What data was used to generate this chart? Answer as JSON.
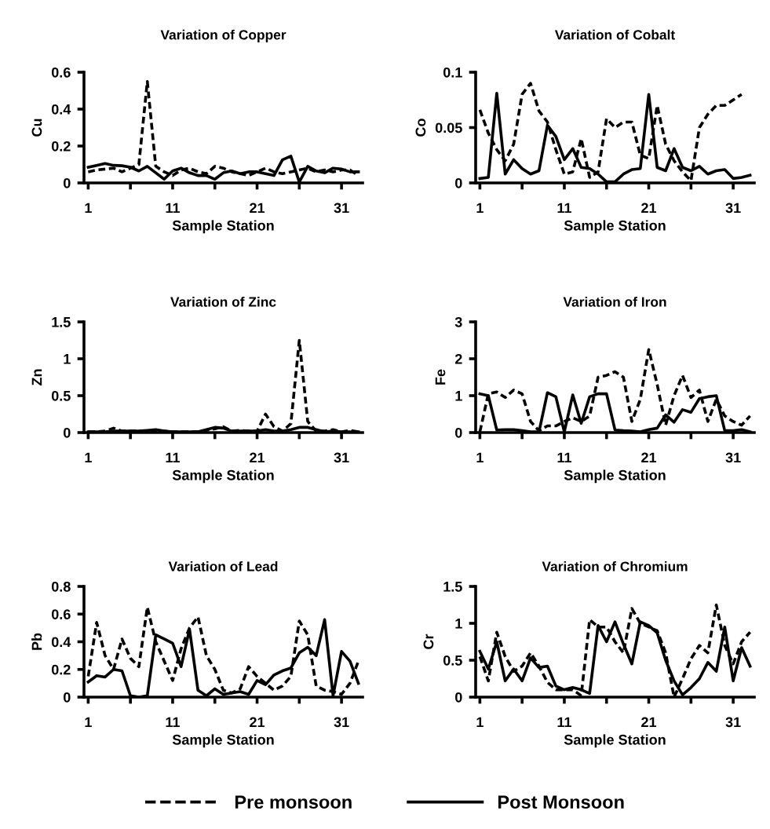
{
  "chart_data": [
    {
      "type": "line",
      "title": "Variation of Copper",
      "xlabel": "Sample Station",
      "ylabel": "Cu",
      "x": [
        1,
        2,
        3,
        4,
        5,
        6,
        7,
        8,
        9,
        10,
        11,
        12,
        13,
        14,
        15,
        16,
        17,
        18,
        19,
        20,
        21,
        22,
        23,
        24,
        25,
        26,
        27,
        28,
        29,
        30,
        31,
        32,
        33
      ],
      "xlim": [
        0.5,
        33.5
      ],
      "xticks": [
        1,
        {
          "value": 6,
          "label": null
        },
        11,
        {
          "value": 16,
          "label": null
        },
        21,
        {
          "value": 26,
          "label": null
        },
        31
      ],
      "ylim": [
        0,
        0.6
      ],
      "yticks": [
        0,
        0.2,
        0.4,
        0.6
      ],
      "grid": false,
      "marker": "none",
      "legend": "bottom",
      "series": [
        {
          "name": "Pre monsoon",
          "color": "#000000",
          "line_style": "dashed",
          "values": [
            0.06,
            0.07,
            0.075,
            0.08,
            0.06,
            0.08,
            0.1,
            0.55,
            0.09,
            0.06,
            0.04,
            0.07,
            0.08,
            0.06,
            0.05,
            0.09,
            0.08,
            0.06,
            0.05,
            0.04,
            0.06,
            0.08,
            0.06,
            0.05,
            0.06,
            0.07,
            0.08,
            0.06,
            0.07,
            0.06,
            0.07,
            0.07,
            0.04
          ]
        },
        {
          "name": "Post Monsoon",
          "color": "#000000",
          "line_style": "solid",
          "values": [
            0.085,
            0.095,
            0.105,
            0.095,
            0.093,
            0.085,
            0.065,
            0.09,
            0.055,
            0.02,
            0.065,
            0.08,
            0.055,
            0.04,
            0.04,
            0.02,
            0.055,
            0.065,
            0.05,
            0.06,
            0.06,
            0.05,
            0.04,
            0.125,
            0.145,
            0.005,
            0.09,
            0.065,
            0.055,
            0.08,
            0.075,
            0.06,
            0.06
          ]
        }
      ]
    },
    {
      "type": "line",
      "title": "Variation of Cobalt",
      "xlabel": "Sample Station",
      "ylabel": "Co",
      "x": [
        1,
        2,
        3,
        4,
        5,
        6,
        7,
        8,
        9,
        10,
        11,
        12,
        13,
        14,
        15,
        16,
        17,
        18,
        19,
        20,
        21,
        22,
        23,
        24,
        25,
        26,
        27,
        28,
        29,
        30,
        31,
        32,
        33
      ],
      "xlim": [
        0.5,
        33.5
      ],
      "xticks": [
        1,
        {
          "value": 6,
          "label": null
        },
        11,
        {
          "value": 16,
          "label": null
        },
        21,
        {
          "value": 26,
          "label": null
        },
        31
      ],
      "ylim": [
        0,
        0.1
      ],
      "yticks": [
        0,
        0.05,
        0.1
      ],
      "grid": false,
      "marker": "none",
      "series": [
        {
          "color": "#000000",
          "line_style": "dashed",
          "values": [
            0.066,
            0.045,
            0.03,
            0.02,
            0.035,
            0.08,
            0.09,
            0.065,
            0.055,
            0.03,
            0.008,
            0.01,
            0.04,
            0.005,
            0.01,
            0.058,
            0.05,
            0.055,
            0.055,
            0.025,
            0.022,
            0.07,
            0.035,
            0.02,
            0.01,
            0.002,
            0.05,
            0.062,
            0.07,
            0.07,
            0.075,
            0.08,
            null
          ]
        },
        {
          "color": "#000000",
          "line_style": "solid",
          "values": [
            0.004,
            0.005,
            0.081,
            0.008,
            0.021,
            0.013,
            0.008,
            0.011,
            0.052,
            0.042,
            0.021,
            0.031,
            0.014,
            0.013,
            0.008,
            0.001,
            0.001,
            0.008,
            0.012,
            0.013,
            0.08,
            0.014,
            0.011,
            0.031,
            0.014,
            0.011,
            0.015,
            0.008,
            0.011,
            0.012,
            0.004,
            0.005,
            0.007
          ]
        }
      ]
    },
    {
      "type": "line",
      "title": "Variation of Zinc",
      "xlabel": "Sample Station",
      "ylabel": "Zn",
      "x": [
        1,
        2,
        3,
        4,
        5,
        6,
        7,
        8,
        9,
        10,
        11,
        12,
        13,
        14,
        15,
        16,
        17,
        18,
        19,
        20,
        21,
        22,
        23,
        24,
        25,
        26,
        27,
        28,
        29,
        30,
        31,
        32,
        33
      ],
      "xlim": [
        0.5,
        33.5
      ],
      "xticks": [
        1,
        {
          "value": 6,
          "label": null
        },
        11,
        {
          "value": 16,
          "label": null
        },
        21,
        {
          "value": 26,
          "label": null
        },
        31
      ],
      "ylim": [
        0,
        1.5
      ],
      "yticks": [
        0,
        0.5,
        1,
        1.5
      ],
      "grid": false,
      "marker": "none",
      "series": [
        {
          "color": "#000000",
          "line_style": "dashed",
          "values": [
            0.01,
            0.01,
            0.02,
            0.06,
            0.02,
            0.02,
            0.02,
            0.02,
            0.03,
            0.02,
            0.01,
            0.01,
            0.01,
            0.01,
            0.03,
            0.05,
            0.08,
            0.02,
            0.03,
            0.02,
            0.02,
            0.25,
            0.08,
            0.02,
            0.12,
            1.25,
            0.15,
            0.02,
            0.02,
            0.04,
            0.01,
            0.03,
            0.01
          ]
        },
        {
          "color": "#000000",
          "line_style": "solid",
          "values": [
            0.01,
            0.01,
            0.01,
            0.02,
            0.02,
            0.02,
            0.02,
            0.03,
            0.04,
            0.02,
            0.01,
            0.01,
            0.01,
            0.01,
            0.04,
            0.07,
            0.06,
            0.02,
            0.02,
            0.02,
            0.02,
            0.04,
            0.02,
            0.02,
            0.04,
            0.07,
            0.07,
            0.04,
            0.01,
            0.02,
            0.01,
            0.01,
            0.01
          ]
        }
      ]
    },
    {
      "type": "line",
      "title": "Variation of Iron",
      "xlabel": "Sample Station",
      "ylabel": "Fe",
      "x": [
        1,
        2,
        3,
        4,
        5,
        6,
        7,
        8,
        9,
        10,
        11,
        12,
        13,
        14,
        15,
        16,
        17,
        18,
        19,
        20,
        21,
        22,
        23,
        24,
        25,
        26,
        27,
        28,
        29,
        30,
        31,
        32,
        33
      ],
      "xlim": [
        0.5,
        33.5
      ],
      "xticks": [
        1,
        {
          "value": 6,
          "label": null
        },
        11,
        {
          "value": 16,
          "label": null
        },
        21,
        {
          "value": 26,
          "label": null
        },
        31
      ],
      "ylim": [
        0,
        3
      ],
      "yticks": [
        0,
        1,
        2,
        3
      ],
      "grid": false,
      "marker": "none",
      "series": [
        {
          "color": "#000000",
          "line_style": "dashed",
          "values": [
            0.02,
            1.05,
            1.1,
            0.95,
            1.15,
            1.05,
            0.3,
            0.05,
            0.18,
            0.18,
            0.3,
            0.4,
            0.3,
            0.45,
            1.5,
            1.55,
            1.65,
            1.5,
            0.3,
            0.9,
            2.25,
            1.3,
            0.2,
            1.0,
            1.55,
            0.95,
            1.15,
            0.3,
            0.9,
            0.45,
            0.3,
            0.2,
            0.45
          ]
        },
        {
          "color": "#000000",
          "line_style": "solid",
          "values": [
            1.05,
            1.0,
            0.07,
            0.08,
            0.08,
            0.05,
            0.02,
            0.02,
            1.08,
            0.97,
            0.02,
            1.02,
            0.25,
            0.97,
            1.05,
            1.05,
            0.07,
            0.05,
            0.04,
            0.02,
            0.08,
            0.12,
            0.48,
            0.28,
            0.62,
            0.55,
            0.92,
            0.97,
            1.0,
            0.05,
            0.05,
            0.08,
            0.02
          ]
        }
      ]
    },
    {
      "type": "line",
      "title": "Variation of Lead",
      "xlabel": "Sample Station",
      "ylabel": "Pb",
      "x": [
        1,
        2,
        3,
        4,
        5,
        6,
        7,
        8,
        9,
        10,
        11,
        12,
        13,
        14,
        15,
        16,
        17,
        18,
        19,
        20,
        21,
        22,
        23,
        24,
        25,
        26,
        27,
        28,
        29,
        30,
        31,
        32,
        33
      ],
      "xlim": [
        0.5,
        33.5
      ],
      "xticks": [
        1,
        {
          "value": 6,
          "label": null
        },
        11,
        {
          "value": 16,
          "label": null
        },
        21,
        {
          "value": 26,
          "label": null
        },
        31
      ],
      "ylim": [
        0,
        0.8
      ],
      "yticks": [
        0,
        0.2,
        0.4,
        0.6,
        0.8
      ],
      "grid": false,
      "marker": "none",
      "series": [
        {
          "color": "#000000",
          "line_style": "dashed",
          "values": [
            0.15,
            0.54,
            0.3,
            0.2,
            0.42,
            0.28,
            0.22,
            0.65,
            0.4,
            0.26,
            0.12,
            0.35,
            0.5,
            0.58,
            0.3,
            0.2,
            0.05,
            0.03,
            0.06,
            0.22,
            0.15,
            0.1,
            0.05,
            0.08,
            0.15,
            0.55,
            0.45,
            0.08,
            0.05,
            0.04,
            0.02,
            0.1,
            0.26
          ]
        },
        {
          "color": "#000000",
          "line_style": "solid",
          "values": [
            0.11,
            0.155,
            0.145,
            0.2,
            0.19,
            0.01,
            0.0,
            0.01,
            0.45,
            0.42,
            0.39,
            0.22,
            0.49,
            0.05,
            0.01,
            0.06,
            0.02,
            0.03,
            0.04,
            0.02,
            0.12,
            0.09,
            0.16,
            0.19,
            0.21,
            0.32,
            0.36,
            0.3,
            0.56,
            0.01,
            0.33,
            0.26,
            0.1
          ]
        }
      ]
    },
    {
      "type": "line",
      "title": "Variation of Chromium",
      "xlabel": "Sample Station",
      "ylabel": "Cr",
      "x": [
        1,
        2,
        3,
        4,
        5,
        6,
        7,
        8,
        9,
        10,
        11,
        12,
        13,
        14,
        15,
        16,
        17,
        18,
        19,
        20,
        21,
        22,
        23,
        24,
        25,
        26,
        27,
        28,
        29,
        30,
        31,
        32,
        33
      ],
      "xlim": [
        0.5,
        33.5
      ],
      "xticks": [
        1,
        {
          "value": 6,
          "label": null
        },
        11,
        {
          "value": 16,
          "label": null
        },
        21,
        {
          "value": 26,
          "label": null
        },
        31
      ],
      "ylim": [
        0,
        1.5
      ],
      "yticks": [
        0,
        0.5,
        1,
        1.5
      ],
      "grid": false,
      "marker": "none",
      "series": [
        {
          "color": "#000000",
          "line_style": "dashed",
          "values": [
            0.55,
            0.22,
            0.88,
            0.55,
            0.35,
            0.42,
            0.6,
            0.42,
            0.2,
            0.1,
            0.1,
            0.1,
            0.02,
            1.05,
            0.95,
            0.95,
            0.75,
            0.6,
            1.2,
            1.0,
            0.95,
            0.9,
            0.6,
            0.0,
            0.25,
            0.52,
            0.7,
            0.6,
            1.25,
            0.7,
            0.45,
            0.75,
            0.88
          ]
        },
        {
          "color": "#000000",
          "line_style": "solid",
          "values": [
            0.62,
            0.38,
            0.75,
            0.22,
            0.38,
            0.22,
            0.53,
            0.4,
            0.42,
            0.15,
            0.1,
            0.13,
            0.1,
            0.05,
            0.97,
            0.75,
            1.02,
            0.72,
            0.45,
            1.02,
            0.97,
            0.87,
            0.5,
            0.22,
            0.03,
            0.13,
            0.25,
            0.47,
            0.35,
            0.95,
            0.22,
            0.67,
            0.42
          ]
        }
      ]
    }
  ]
}
